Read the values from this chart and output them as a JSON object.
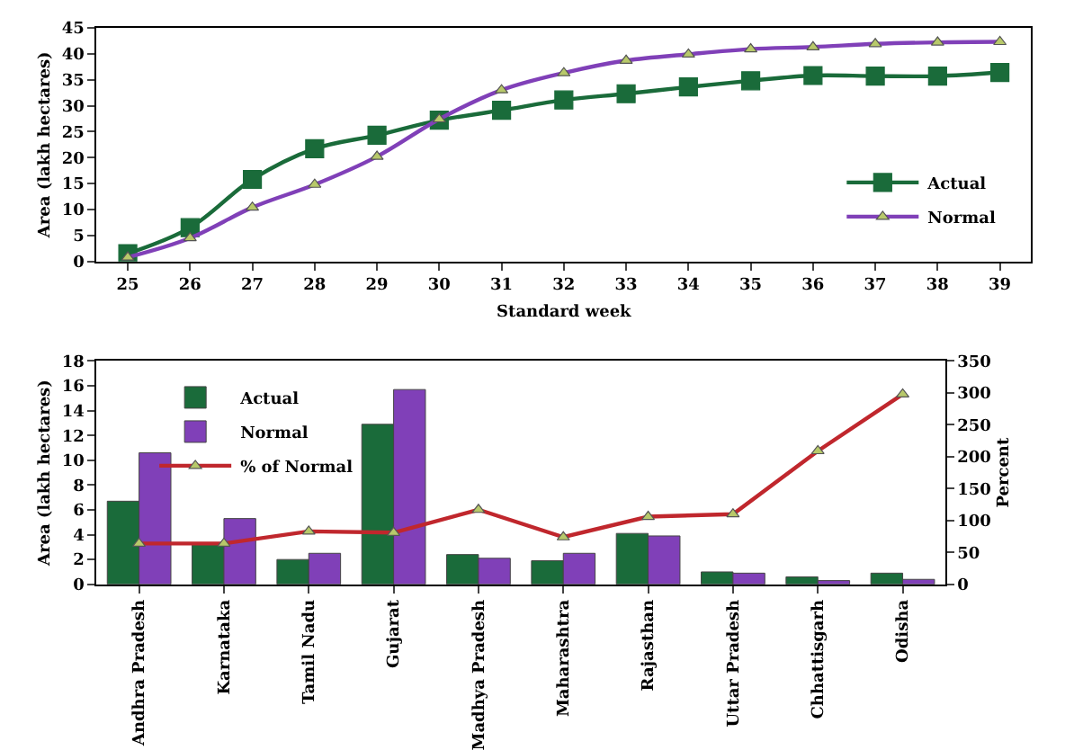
{
  "chart_data": [
    {
      "type": "line",
      "xlabel": "Standard week",
      "ylabel": "Area (lakh hectares)",
      "x": [
        25,
        26,
        27,
        28,
        29,
        30,
        31,
        32,
        33,
        34,
        35,
        36,
        37,
        38,
        39
      ],
      "xlim": [
        24.5,
        39.5
      ],
      "xticks": [
        25,
        26,
        27,
        28,
        29,
        30,
        31,
        32,
        33,
        34,
        35,
        36,
        37,
        38,
        39
      ],
      "ylim": [
        0,
        45
      ],
      "yticks": [
        0,
        5,
        10,
        15,
        20,
        25,
        30,
        35,
        40,
        45
      ],
      "grid": false,
      "legend": "right",
      "series": [
        {
          "name": "Actual",
          "color": "#1a6b3a",
          "marker": "square",
          "values": [
            1.5,
            6.5,
            15.8,
            21.7,
            24.3,
            27.2,
            29.1,
            31.1,
            32.3,
            33.6,
            34.8,
            35.8,
            35.7,
            35.7,
            36.4
          ]
        },
        {
          "name": "Normal",
          "color": "#8040b8",
          "marker": "triangle",
          "values": [
            0.8,
            4.5,
            10.4,
            14.8,
            20.2,
            27.4,
            33.0,
            36.3,
            38.7,
            39.9,
            40.9,
            41.3,
            41.9,
            42.2,
            42.3
          ]
        }
      ]
    },
    {
      "type": "bar",
      "ylabel": "Area (lakh hectares)",
      "y2label": "Percent",
      "categories": [
        "Andhra Pradesh",
        "Karnataka",
        "Tamil Nadu",
        "Gujarat",
        "Madhya Pradesh",
        "Maharashtra",
        "Rajasthan",
        "Uttar Pradesh",
        "Chhattisgarh",
        "Odisha"
      ],
      "ylim": [
        0,
        18
      ],
      "yticks": [
        0,
        2,
        4,
        6,
        8,
        10,
        12,
        14,
        16,
        18
      ],
      "y2lim": [
        0,
        350
      ],
      "y2ticks": [
        0,
        50,
        100,
        150,
        200,
        250,
        300,
        350
      ],
      "grid": false,
      "legend": "top left",
      "series": [
        {
          "name": "Actual",
          "color": "#1a6b3a",
          "values": [
            6.7,
            3.3,
            2.0,
            12.9,
            2.4,
            1.9,
            4.1,
            1.0,
            0.6,
            0.9
          ]
        },
        {
          "name": "Normal",
          "color": "#8040b8",
          "values": [
            10.6,
            5.3,
            2.5,
            15.7,
            2.1,
            2.5,
            3.9,
            0.9,
            0.3,
            0.4
          ]
        },
        {
          "name": "% of Normal",
          "type": "line",
          "axis": "y2",
          "color": "#c0272d",
          "marker": "triangle",
          "values": [
            64,
            64,
            83,
            81,
            117,
            74,
            106,
            110,
            209,
            298
          ]
        }
      ]
    }
  ]
}
